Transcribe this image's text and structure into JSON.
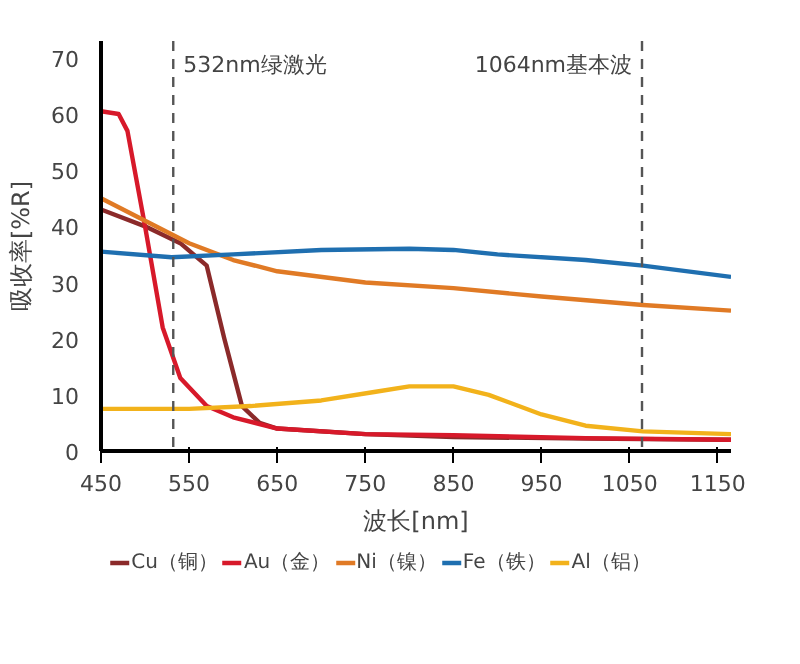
{
  "chart_data": {
    "type": "line",
    "xlabel": "波长[nm]",
    "ylabel": "吸收率[%R]",
    "xlim": [
      450,
      1165
    ],
    "ylim": [
      0,
      73
    ],
    "xticks": [
      450,
      550,
      650,
      750,
      850,
      950,
      1050,
      1150
    ],
    "yticks": [
      0,
      10,
      20,
      30,
      40,
      50,
      60,
      70
    ],
    "grid": false,
    "legend": "bottom",
    "ref_lines": [
      {
        "axis": "x",
        "value": 532,
        "label": "532nm绿激光",
        "color": "#555555",
        "line_style": "dashed"
      },
      {
        "axis": "x",
        "value": 1064,
        "label": "1064nm基本波",
        "color": "#555555",
        "line_style": "dashed"
      }
    ],
    "series": [
      {
        "name": "Cu（铜）",
        "color": "#8b2a2a",
        "x": [
          450,
          500,
          540,
          570,
          590,
          610,
          630,
          650,
          750,
          850,
          1000,
          1165
        ],
        "values": [
          43,
          40,
          37,
          33,
          20,
          8,
          5,
          4,
          3,
          2.5,
          2.2,
          2
        ]
      },
      {
        "name": "Au（金）",
        "color": "#d7192a",
        "x": [
          450,
          470,
          480,
          500,
          520,
          540,
          570,
          600,
          650,
          750,
          850,
          1000,
          1165
        ],
        "values": [
          60.5,
          60,
          57,
          40,
          22,
          13,
          8,
          6,
          4,
          3,
          2.8,
          2.3,
          2
        ]
      },
      {
        "name": "Ni（镍）",
        "color": "#e07a25",
        "x": [
          450,
          500,
          550,
          600,
          650,
          750,
          850,
          950,
          1065,
          1165
        ],
        "values": [
          45,
          41,
          37,
          34,
          32,
          30,
          29,
          27.5,
          26,
          25
        ]
      },
      {
        "name": "Fe（铁）",
        "color": "#1f6fb0",
        "x": [
          450,
          530,
          600,
          700,
          800,
          850,
          900,
          1000,
          1065,
          1165
        ],
        "values": [
          35.5,
          34.5,
          35,
          35.8,
          36,
          35.8,
          35,
          34,
          33,
          31
        ]
      },
      {
        "name": "Al（铝）",
        "color": "#f2b21b",
        "x": [
          450,
          550,
          620,
          700,
          760,
          800,
          850,
          890,
          950,
          1000,
          1065,
          1165
        ],
        "values": [
          7.5,
          7.5,
          8,
          9,
          10.5,
          11.5,
          11.5,
          10,
          6.5,
          4.5,
          3.5,
          3
        ]
      }
    ]
  }
}
